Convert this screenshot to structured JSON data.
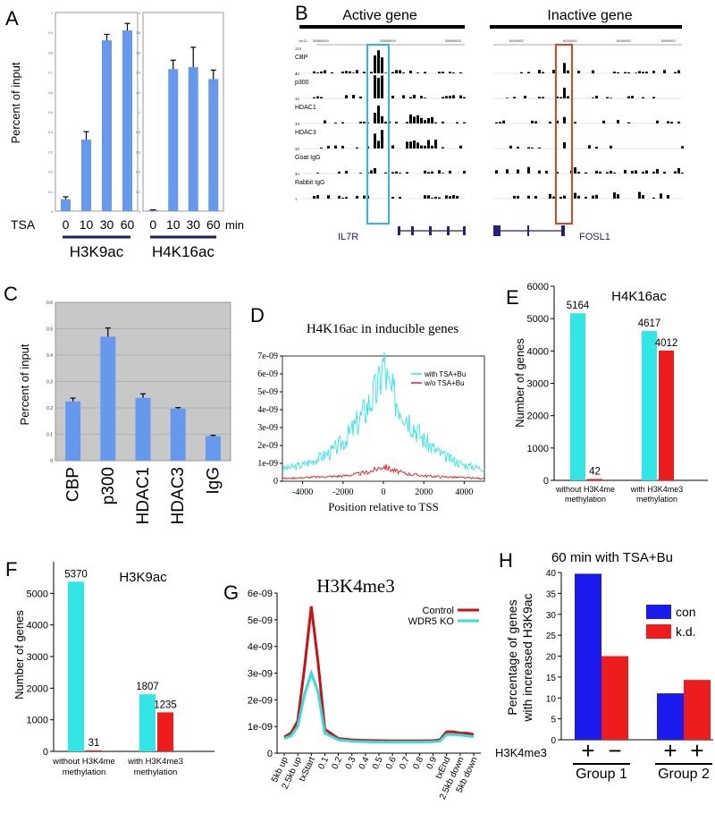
{
  "panel_letters": {
    "A": "A",
    "B": "B",
    "C": "C",
    "D": "D",
    "E": "E",
    "F": "F",
    "G": "G",
    "H": "H"
  },
  "colors": {
    "cyan": "#33e6e6",
    "red": "#ee1c1c",
    "blue": "#1a1aee",
    "steel": "#6699ee",
    "navy": "#1c1c6b",
    "orange": "#e0461e",
    "teal": "#2fb5e6",
    "grey_bg": "#c8c8c8"
  },
  "chart_data": [
    {
      "id": "A",
      "type": "bar",
      "ylabel": "Percent of input",
      "x_prefix": "TSA",
      "x_unit": "min",
      "groups": [
        {
          "name": "H3K9ac",
          "categories": [
            "0",
            "10",
            "30",
            "60"
          ],
          "values": [
            0.06,
            0.36,
            0.86,
            0.91
          ],
          "errors": [
            0.012,
            0.04,
            0.03,
            0.035
          ],
          "ylim": [
            0,
            1.0
          ],
          "ticks": [
            0,
            0.1,
            0.2,
            0.3,
            0.4,
            0.5,
            0.6,
            0.7,
            0.8,
            0.9,
            1.0
          ]
        },
        {
          "name": "H4K16ac",
          "categories": [
            "0",
            "10",
            "30",
            "60"
          ],
          "values": [
            0.01,
            1.43,
            1.45,
            1.33
          ],
          "errors": [
            0.003,
            0.09,
            0.2,
            0.09
          ],
          "ylim": [
            0,
            2.0
          ],
          "ticks": [
            0,
            0.2,
            0.4,
            0.6,
            0.8,
            1.0,
            1.2,
            1.4,
            1.6,
            1.8,
            2.0
          ]
        }
      ]
    },
    {
      "id": "B",
      "type": "genome-tracks",
      "headers": [
        "Active gene",
        "Inactive gene"
      ],
      "coords_left": [
        "chr11:",
        "35880000",
        "35885000",
        "35890000"
      ],
      "coords_right": [
        "6540000",
        "6545000",
        "6546000",
        "6550000"
      ],
      "tracks": [
        {
          "name": "CBP",
          "max": "116",
          "min": "1"
        },
        {
          "name": "p300",
          "max": "40",
          "min": "1"
        },
        {
          "name": "HDAC1",
          "max": "13",
          "min": "1"
        },
        {
          "name": "HDAC3",
          "max": "18",
          "min": "1"
        },
        {
          "name": "Goat IgG",
          "max": "16",
          "min": "1"
        },
        {
          "name": "Rabbit IgG",
          "max": "24",
          "min": "1"
        }
      ],
      "genes": [
        "IL7R",
        "FOSL1"
      ]
    },
    {
      "id": "C",
      "type": "bar",
      "ylabel": "Percent of input",
      "categories": [
        "CBP",
        "p300",
        "HDAC1",
        "HDAC3",
        "IgG"
      ],
      "values": [
        0.225,
        0.47,
        0.238,
        0.197,
        0.093
      ],
      "errors": [
        0.012,
        0.033,
        0.015,
        0.004,
        0.003
      ],
      "ylim": [
        0,
        0.6
      ],
      "ticks": [
        0,
        0.1,
        0.2,
        0.3,
        0.4,
        0.5,
        0.6
      ]
    },
    {
      "id": "D",
      "type": "line",
      "title": "H4K16ac in inducible genes",
      "xlabel": "Position relative to TSS",
      "xlim": [
        -5000,
        5000
      ],
      "ylim": [
        0,
        7e-09
      ],
      "xticks": [
        -4000,
        -2000,
        0,
        2000,
        4000
      ],
      "xtick_labels": [
        "-4000",
        "-2000",
        "0",
        "2000",
        "4000"
      ],
      "yticks": [
        0,
        1e-09,
        2e-09,
        3e-09,
        4e-09,
        5e-09,
        6e-09,
        7e-09
      ],
      "ytick_labels": [
        "0",
        "1e-09",
        "2e-09",
        "3e-09",
        "4e-09",
        "5e-09",
        "6e-09",
        "7e-09"
      ],
      "series": [
        {
          "name": "with TSA+Bu",
          "color": "#33e6e6",
          "x": [
            -5000,
            -4000,
            -3000,
            -2500,
            -2000,
            -1500,
            -1000,
            -500,
            -250,
            0,
            250,
            500,
            1000,
            1500,
            2000,
            2500,
            3000,
            4000,
            5000
          ],
          "y": [
            7e-10,
            9e-10,
            1.4e-09,
            1.7e-09,
            2.2e-09,
            2.9e-09,
            3.8e-09,
            4.8e-09,
            5.2e-09,
            6.7e-09,
            5.2e-09,
            4.8e-09,
            4e-09,
            3.1e-09,
            2.3e-09,
            1.8e-09,
            1.4e-09,
            9e-10,
            7e-10
          ]
        },
        {
          "name": "w/o TSA+Bu",
          "color": "#ee1c1c",
          "x": [
            -5000,
            -4000,
            -3000,
            -2000,
            -1000,
            -500,
            0,
            500,
            1000,
            2000,
            3000,
            4000,
            5000
          ],
          "y": [
            1.5e-10,
            2e-10,
            2.5e-10,
            3e-10,
            4.5e-10,
            6e-10,
            8.5e-10,
            6e-10,
            4.5e-10,
            3e-10,
            2.5e-10,
            2e-10,
            1.5e-10
          ]
        }
      ]
    },
    {
      "id": "E",
      "type": "bar",
      "title": "H4K16ac",
      "ylabel": "Number of genes",
      "ylim": [
        0,
        6000
      ],
      "ticks": [
        0,
        1000,
        2000,
        3000,
        4000,
        5000,
        6000
      ],
      "groups": [
        {
          "label": [
            "without H3K4me",
            "methylation"
          ],
          "values": [
            5164,
            42
          ]
        },
        {
          "label": [
            "with H3K4me3",
            "methylation"
          ],
          "values": [
            4617,
            4012
          ]
        }
      ],
      "value_labels": [
        "5164",
        "42",
        "4617",
        "4012"
      ]
    },
    {
      "id": "F",
      "type": "bar",
      "title": "H3K9ac",
      "ylabel": "Number of genes",
      "ylim": [
        0,
        6000
      ],
      "ticks": [
        0,
        1000,
        2000,
        3000,
        4000,
        5000
      ],
      "groups": [
        {
          "label": [
            "without H3K4me",
            "methylation"
          ],
          "values": [
            5370,
            31
          ]
        },
        {
          "label": [
            "with H3K4me3",
            "methylation"
          ],
          "values": [
            1807,
            1235
          ]
        }
      ],
      "value_labels": [
        "5370",
        "31",
        "1807",
        "1235"
      ]
    },
    {
      "id": "G",
      "type": "line",
      "title": "H3K4me3",
      "ylim": [
        0,
        6e-09
      ],
      "yticks": [
        0,
        1e-09,
        2e-09,
        3e-09,
        4e-09,
        5e-09,
        6e-09
      ],
      "ytick_labels": [
        "0",
        "1e-09",
        "2e-09",
        "3e-09",
        "4e-09",
        "5e-09",
        "6e-09"
      ],
      "categories": [
        "5kb up",
        "2.5kb up",
        "txStart",
        "0.1",
        "0.2",
        "0.3",
        "0.4",
        "0.5",
        "0.6",
        "0.7",
        "0.8",
        "0.9",
        "txEnd",
        "2.5kb down",
        "5kb down"
      ],
      "series": [
        {
          "name": "Control",
          "color": "#cc1111",
          "x": [
            0,
            0.5,
            1,
            1.5,
            2,
            2.5,
            3,
            4,
            5,
            6,
            7,
            8,
            9,
            10,
            11,
            11.5,
            12,
            12.5,
            13,
            13.5,
            14
          ],
          "y": [
            6e-10,
            7.5e-10,
            1.2e-09,
            3.2e-09,
            5.5e-09,
            3.4e-09,
            9e-10,
            5.5e-10,
            5e-10,
            4.8e-10,
            4.7e-10,
            4.6e-10,
            4.6e-10,
            4.6e-10,
            4.7e-10,
            5e-10,
            8e-10,
            8e-10,
            7.5e-10,
            7.5e-10,
            7e-10
          ]
        },
        {
          "name": "WDR5 KO",
          "color": "#33dddd",
          "x": [
            0,
            0.5,
            1,
            1.5,
            2,
            2.5,
            3,
            4,
            5,
            6,
            7,
            8,
            9,
            10,
            11,
            11.5,
            12,
            12.5,
            13,
            13.5,
            14
          ],
          "y": [
            5.5e-10,
            6.5e-10,
            1e-09,
            2.2e-09,
            3e-09,
            2.3e-09,
            7.5e-10,
            5e-10,
            4.5e-10,
            4.3e-10,
            4.2e-10,
            4.2e-10,
            4.2e-10,
            4.2e-10,
            4.3e-10,
            4.5e-10,
            7e-10,
            7e-10,
            6.8e-10,
            6.5e-10,
            6.2e-10
          ]
        }
      ]
    },
    {
      "id": "H",
      "type": "bar",
      "title": "60 min with TSA+Bu",
      "ylabel": [
        "Percentage of genes",
        "with increased H3K9ac"
      ],
      "ylim": [
        0,
        40
      ],
      "ticks": [
        0,
        5,
        10,
        15,
        20,
        25,
        30,
        35,
        40
      ],
      "series": [
        {
          "name": "con",
          "color": "#1a1aee",
          "values": [
            39.7,
            11.1
          ]
        },
        {
          "name": "k.d.",
          "color": "#ee1c1c",
          "values": [
            20.0,
            14.3
          ]
        }
      ],
      "row_label": "H3K4me3",
      "group_marks": [
        [
          "+",
          "−"
        ],
        [
          "+",
          "+"
        ]
      ],
      "groups": [
        "Group 1",
        "Group 2"
      ]
    }
  ]
}
